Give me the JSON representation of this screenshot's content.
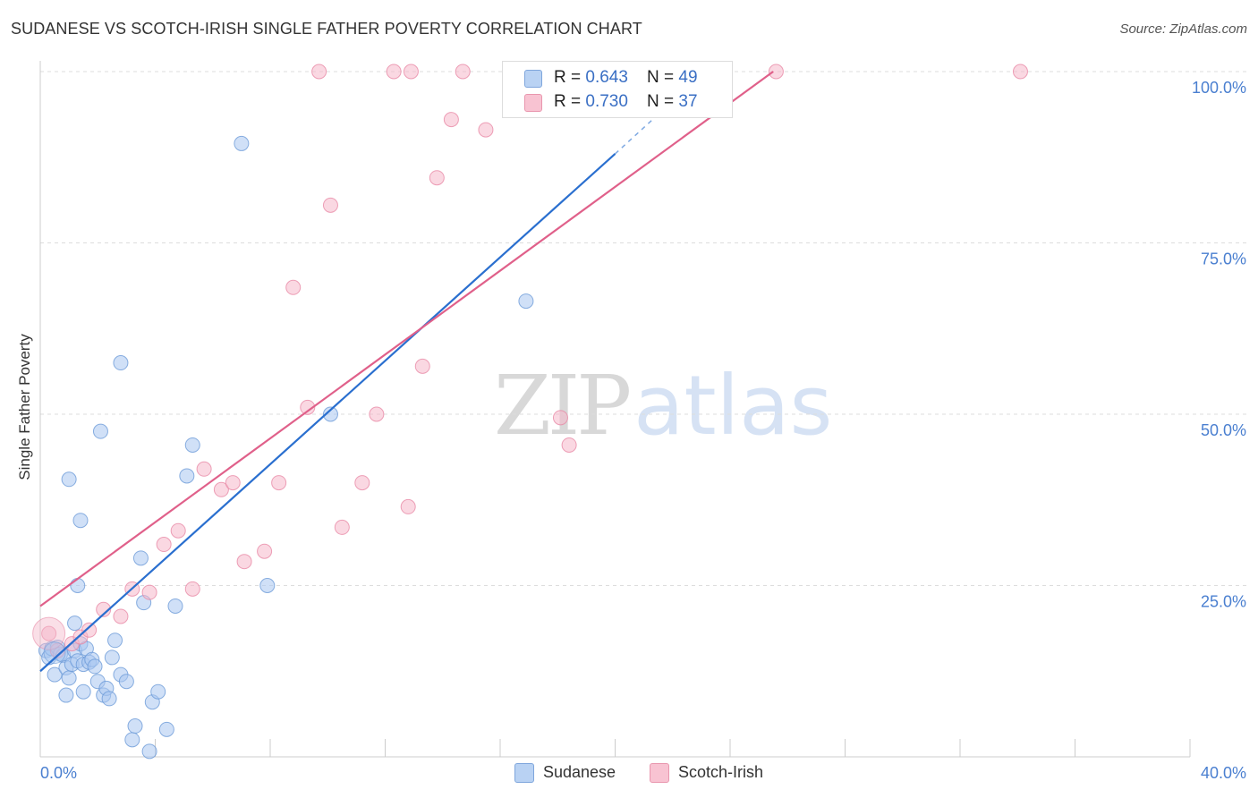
{
  "title": "SUDANESE VS SCOTCH-IRISH SINGLE FATHER POVERTY CORRELATION CHART",
  "source": "Source: ZipAtlas.com",
  "watermark": {
    "zip": "ZIP",
    "atlas": "atlas"
  },
  "legend_top": [
    {
      "r_label": "R = ",
      "r_value": "0.643",
      "n_label": "N = ",
      "n_value": "49"
    },
    {
      "r_label": "R = ",
      "r_value": "0.730",
      "n_label": "N = ",
      "n_value": "37"
    }
  ],
  "legend_bottom": [
    "Sudanese",
    "Scotch-Irish"
  ],
  "colors": {
    "sudanese_fill": "#a9c7f0",
    "sudanese_stroke": "#6d9bd8",
    "sudanese_line": "#2a6fcf",
    "scotch_fill": "#f5b8ca",
    "scotch_stroke": "#e88aa6",
    "scotch_line": "#e0608a",
    "tick_text": "#4a7fd0",
    "grid": "#dddddd"
  },
  "chart_data": {
    "type": "scatter",
    "title": "SUDANESE VS SCOTCH-IRISH SINGLE FATHER POVERTY CORRELATION CHART",
    "xlabel": "",
    "ylabel": "Single Father Poverty",
    "xlim": [
      0,
      40
    ],
    "ylim": [
      0,
      100
    ],
    "x_tick_labels": [
      "0.0%",
      "40.0%"
    ],
    "y_ticks": [
      25,
      50,
      75,
      100
    ],
    "y_tick_labels": [
      "25.0%",
      "50.0%",
      "75.0%",
      "100.0%"
    ],
    "grid": true,
    "series": [
      {
        "name": "Sudanese",
        "R": 0.643,
        "N": 49,
        "trend": {
          "x0": 0,
          "y0": 12.5,
          "x1": 20,
          "y1": 88,
          "dash_to_x": 23,
          "dash_to_y": 99.5
        },
        "points": [
          [
            0.2,
            15.5
          ],
          [
            0.3,
            14.5
          ],
          [
            0.4,
            15.8
          ],
          [
            0.5,
            12
          ],
          [
            0.6,
            16
          ],
          [
            0.7,
            15
          ],
          [
            0.8,
            14.8
          ],
          [
            0.9,
            13
          ],
          [
            1.0,
            11.5
          ],
          [
            1.1,
            13.5
          ],
          [
            1.2,
            15.5
          ],
          [
            1.3,
            14
          ],
          [
            1.4,
            16.5
          ],
          [
            1.5,
            13.5
          ],
          [
            1.6,
            15.8
          ],
          [
            1.7,
            13.8
          ],
          [
            1.8,
            14.2
          ],
          [
            1.9,
            13.2
          ],
          [
            2.0,
            11
          ],
          [
            2.2,
            9
          ],
          [
            2.3,
            10
          ],
          [
            2.4,
            8.5
          ],
          [
            2.5,
            14.5
          ],
          [
            2.6,
            17
          ],
          [
            2.8,
            12
          ],
          [
            3.0,
            11
          ],
          [
            3.2,
            2.5
          ],
          [
            3.3,
            4.5
          ],
          [
            3.5,
            29
          ],
          [
            3.6,
            22.5
          ],
          [
            3.8,
            0.8
          ],
          [
            3.9,
            8
          ],
          [
            4.1,
            9.5
          ],
          [
            4.4,
            4
          ],
          [
            1.2,
            19.5
          ],
          [
            1.3,
            25
          ],
          [
            1.4,
            34.5
          ],
          [
            1.0,
            40.5
          ],
          [
            2.1,
            47.5
          ],
          [
            2.8,
            57.5
          ],
          [
            4.7,
            22
          ],
          [
            5.1,
            41
          ],
          [
            5.3,
            45.5
          ],
          [
            7.0,
            89.5
          ],
          [
            7.9,
            25
          ],
          [
            10.1,
            50
          ],
          [
            16.9,
            66.5
          ],
          [
            0.9,
            9
          ],
          [
            1.5,
            9.5
          ]
        ]
      },
      {
        "name": "Scotch-Irish",
        "R": 0.73,
        "N": 37,
        "trend": {
          "x0": 0,
          "y0": 22,
          "x1": 25.5,
          "y1": 100
        },
        "points": [
          [
            0.3,
            18
          ],
          [
            0.6,
            15.5
          ],
          [
            1.1,
            16.5
          ],
          [
            1.4,
            17.5
          ],
          [
            1.7,
            18.5
          ],
          [
            2.2,
            21.5
          ],
          [
            2.8,
            20.5
          ],
          [
            3.2,
            24.5
          ],
          [
            3.8,
            24
          ],
          [
            4.3,
            31
          ],
          [
            4.8,
            33
          ],
          [
            5.3,
            24.5
          ],
          [
            5.7,
            42
          ],
          [
            6.3,
            39
          ],
          [
            6.7,
            40
          ],
          [
            7.1,
            28.5
          ],
          [
            7.8,
            30
          ],
          [
            8.3,
            40
          ],
          [
            8.8,
            68.5
          ],
          [
            9.3,
            51
          ],
          [
            10.1,
            80.5
          ],
          [
            10.5,
            33.5
          ],
          [
            11.2,
            40
          ],
          [
            11.7,
            50
          ],
          [
            12.8,
            36.5
          ],
          [
            13.3,
            57
          ],
          [
            13.8,
            84.5
          ],
          [
            14.3,
            93
          ],
          [
            15.5,
            91.5
          ],
          [
            18.1,
            49.5
          ],
          [
            18.4,
            45.5
          ],
          [
            9.7,
            100
          ],
          [
            12.3,
            100
          ],
          [
            12.9,
            100
          ],
          [
            14.7,
            100
          ],
          [
            25.6,
            100
          ],
          [
            34.1,
            100
          ]
        ]
      }
    ]
  }
}
